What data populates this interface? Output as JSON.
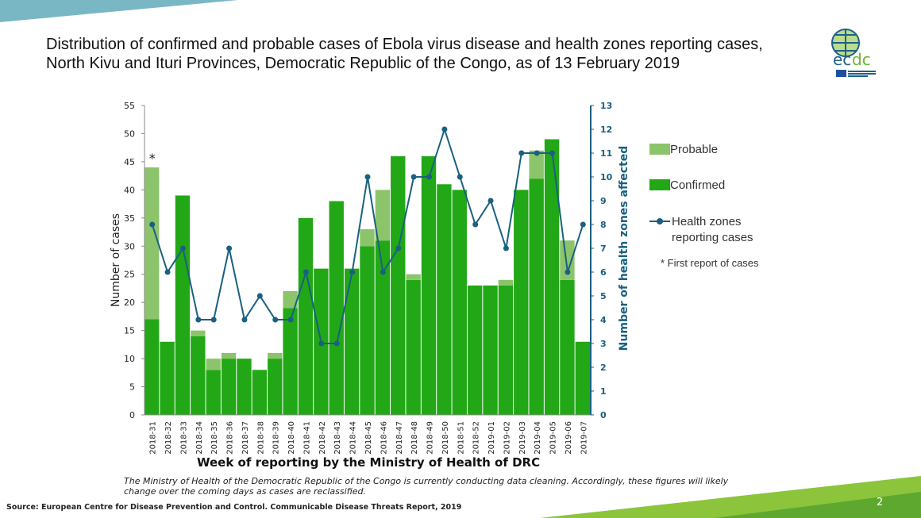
{
  "title": "Distribution of confirmed and probable cases of Ebola virus disease and health zones reporting cases, North Kivu and Ituri Provinces, Democratic Republic of the Congo, as of 13 February 2019",
  "logo_text": "ecdc EUROPEAN CENTRE FOR DISEASE PREVENTION AND CONTROL",
  "note": "The Ministry of Health of the Democratic Republic of the Congo is currently conducting data cleaning. Accordingly, these figures will likely change over the coming days as cases are reclassified.",
  "source": "Source: European Centre for Disease Prevention and Control. Communicable Disease Threats Report, 2019",
  "page_number": "2",
  "chart_data": {
    "type": "bar",
    "stacked": true,
    "xlabel": "Week of reporting by the Ministry of Health of DRC",
    "ylabel": "Number of cases",
    "y2label": "Number of health zones affected",
    "ylim": [
      0,
      55
    ],
    "y2lim": [
      0,
      13
    ],
    "yticks": [
      0,
      5,
      10,
      15,
      20,
      25,
      30,
      35,
      40,
      45,
      50,
      55
    ],
    "y2ticks": [
      0,
      1,
      2,
      3,
      4,
      5,
      6,
      7,
      8,
      9,
      10,
      11,
      12,
      13
    ],
    "categories": [
      "2018-31",
      "2018-32",
      "2018-33",
      "2018-34",
      "2018-35",
      "2018-36",
      "2018-37",
      "2018-38",
      "2018-39",
      "2018-40",
      "2018-41",
      "2018-42",
      "2018-43",
      "2018-44",
      "2018-45",
      "2018-46",
      "2018-47",
      "2018-48",
      "2018-49",
      "2018-50",
      "2018-51",
      "2018-52",
      "2019-01",
      "2019-02",
      "2019-03",
      "2019-04",
      "2019-05",
      "2019-06",
      "2019-07"
    ],
    "series": [
      {
        "name": "Confirmed",
        "color": "#22a816",
        "values": [
          17,
          13,
          39,
          14,
          8,
          10,
          10,
          8,
          10,
          19,
          35,
          26,
          38,
          26,
          30,
          31,
          46,
          24,
          46,
          41,
          40,
          23,
          23,
          23,
          40,
          42,
          49,
          24,
          13
        ]
      },
      {
        "name": "Probable",
        "color": "#8cc46b",
        "values": [
          27,
          0,
          0,
          1,
          2,
          1,
          0,
          0,
          1,
          3,
          0,
          0,
          0,
          0,
          3,
          9,
          0,
          1,
          0,
          0,
          0,
          0,
          0,
          1,
          0,
          5,
          0,
          7,
          0
        ]
      },
      {
        "name": "Health zones reporting cases",
        "axis": "right",
        "type": "line",
        "color": "#1a6080",
        "values": [
          8,
          6,
          7,
          4,
          4,
          7,
          4,
          5,
          4,
          4,
          6,
          3,
          3,
          6,
          10,
          6,
          7,
          10,
          10,
          12,
          10,
          8,
          9,
          7,
          11,
          11,
          11,
          6,
          8
        ]
      }
    ],
    "annotations": [
      {
        "category": "2018-31",
        "text": "*"
      }
    ],
    "footnote": "* First report of cases",
    "legend_position": "right"
  }
}
